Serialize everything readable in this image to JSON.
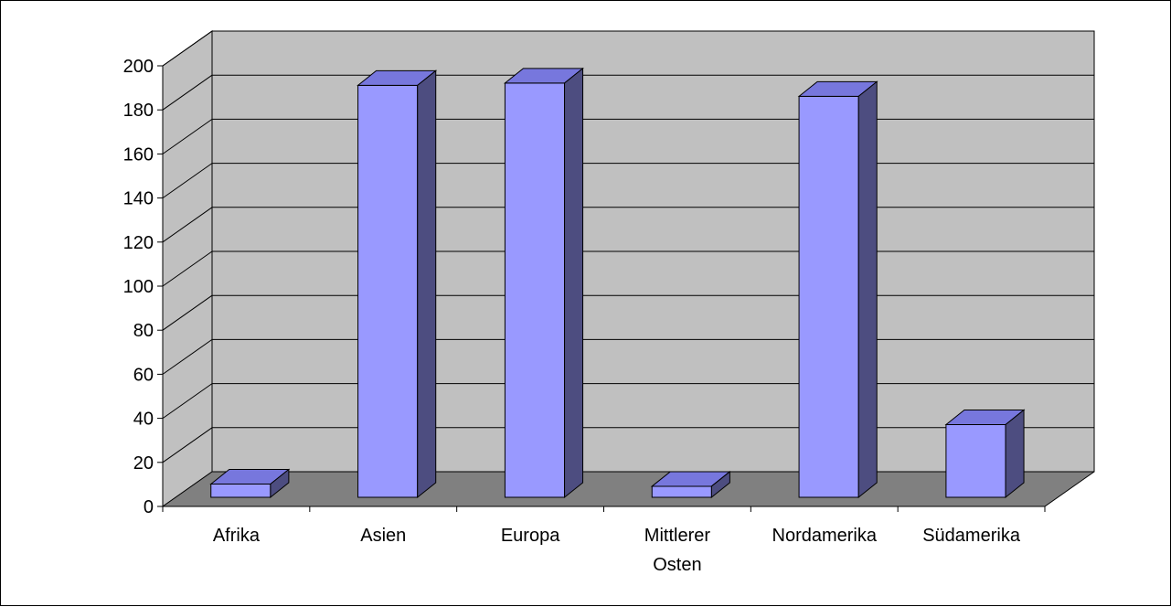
{
  "chart_data": {
    "type": "bar",
    "style": "3d-column",
    "categories": [
      "Afrika",
      "Asien",
      "Europa",
      "Mittlerer Osten",
      "Nordamerika",
      "Südamerika"
    ],
    "category_lines": [
      [
        "Afrika"
      ],
      [
        "Asien"
      ],
      [
        "Europa"
      ],
      [
        "Mittlerer",
        "Osten"
      ],
      [
        "Nordamerika"
      ],
      [
        "Südamerika"
      ]
    ],
    "values": [
      6,
      187,
      188,
      5,
      182,
      33
    ],
    "ylim": [
      0,
      200
    ],
    "yticks": [
      "0",
      "20",
      "40",
      "60",
      "80",
      "100",
      "120",
      "140",
      "160",
      "180",
      "200"
    ],
    "grid": true,
    "legend": "none",
    "colors": {
      "bar_front": "#9999FF",
      "bar_top": "#7777DD",
      "bar_side": "#4D4D80",
      "wall": "#C0C0C0",
      "floor": "#808080",
      "grid": "#000000"
    }
  }
}
